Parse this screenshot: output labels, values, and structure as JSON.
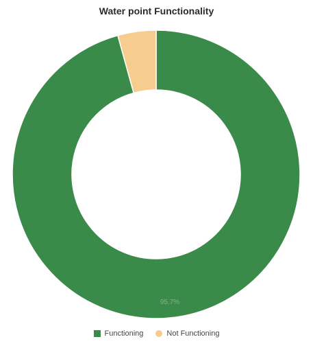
{
  "chart_data": {
    "type": "pie",
    "donut": true,
    "title": "Water point Functionality",
    "categories": [
      "Functioning",
      "Not Functioning"
    ],
    "values": [
      95.7,
      4.3
    ],
    "data_labels": [
      "95.7%",
      ""
    ],
    "colors": [
      "#3a8a4a",
      "#f6cc8f"
    ],
    "legend_position": "bottom"
  }
}
